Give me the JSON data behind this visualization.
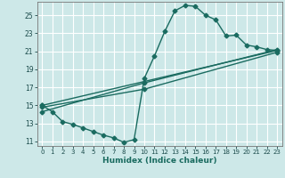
{
  "title": "",
  "xlabel": "Humidex (Indice chaleur)",
  "bg_color": "#cde8e8",
  "grid_color": "#ffffff",
  "line_color": "#1a6b60",
  "xlim": [
    -0.5,
    23.5
  ],
  "ylim": [
    10.5,
    26.5
  ],
  "xticks": [
    0,
    1,
    2,
    3,
    4,
    5,
    6,
    7,
    8,
    9,
    10,
    11,
    12,
    13,
    14,
    15,
    16,
    17,
    18,
    19,
    20,
    21,
    22,
    23
  ],
  "yticks": [
    11,
    13,
    15,
    17,
    19,
    21,
    23,
    25
  ],
  "line1_x": [
    0,
    1,
    2,
    3,
    4,
    5,
    6,
    7,
    8,
    9,
    10,
    11,
    12,
    13,
    14,
    15,
    16,
    17,
    18,
    19,
    20,
    21,
    22,
    23
  ],
  "line1_y": [
    15.0,
    14.3,
    13.2,
    12.9,
    12.5,
    12.1,
    11.7,
    11.4,
    10.9,
    11.2,
    18.0,
    20.5,
    23.2,
    25.5,
    26.1,
    26.0,
    25.0,
    24.5,
    22.7,
    22.8,
    21.7,
    21.5,
    21.2,
    21.1
  ],
  "line2_x": [
    0,
    23
  ],
  "line2_y": [
    15.0,
    21.1
  ],
  "line3_x": [
    0,
    10,
    23
  ],
  "line3_y": [
    14.3,
    17.5,
    21.2
  ],
  "line4_x": [
    0,
    10,
    23
  ],
  "line4_y": [
    14.8,
    16.8,
    20.9
  ],
  "marker": "D",
  "markersize": 2.5,
  "linewidth": 1.0
}
